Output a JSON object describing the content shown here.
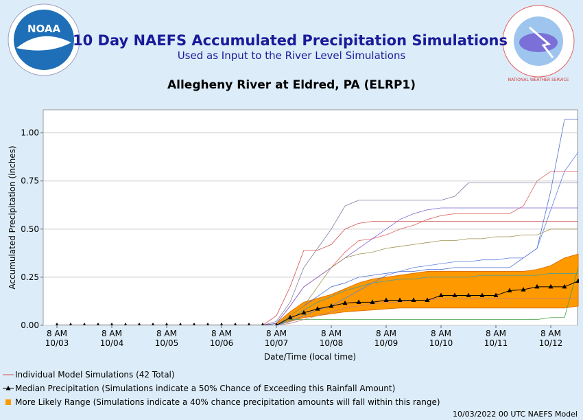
{
  "chart_data": {
    "type": "line",
    "title": "10 Day NAEFS Accumulated Precipitation Simulations",
    "subtitle": "Used as Input to the River Level Simulations",
    "location": "Allegheny River at Eldred, PA (ELRP1)",
    "logos": {
      "noaa": "NOAA",
      "nws": "NATIONAL WEATHER SERVICE"
    },
    "y_label": "Accumulated Precipitation (inches)",
    "x_label": "Date/Time (local time)",
    "footer": "10/03/2022 00 UTC NAEFS Model",
    "category_time_label": "8 AM",
    "categories": [
      "10/03",
      null,
      null,
      null,
      "10/04",
      null,
      null,
      null,
      "10/05",
      null,
      null,
      null,
      "10/06",
      null,
      null,
      null,
      "10/07",
      null,
      null,
      null,
      "10/08",
      null,
      null,
      null,
      "10/09",
      null,
      null,
      null,
      "10/10",
      null,
      null,
      null,
      "10/11",
      null,
      null,
      null,
      "10/12",
      null,
      null
    ],
    "ylim": [
      0,
      1.12
    ],
    "yticks": [
      {
        "value": 0,
        "label": "0.00"
      },
      {
        "value": 0.25,
        "label": "0.25"
      },
      {
        "value": 0.5,
        "label": "0.50"
      },
      {
        "value": 0.75,
        "label": "0.75"
      },
      {
        "value": 1,
        "label": "1.00"
      }
    ],
    "grid": true,
    "legend": [
      {
        "label": "Individual Model Simulations (42 Total)",
        "color": "#d05050"
      },
      {
        "label": "Median Precipitation (Simulations indicate a 50% Chance of Exceeding this Rainfall Amount)",
        "color": "#000000"
      },
      {
        "label": "More Likely Range (Simulations indicate a 40% chance precipitation amounts will fall within this range)",
        "color": "#ff9900"
      }
    ],
    "band": {
      "color": "#ff9900",
      "upper": [
        null,
        null,
        null,
        null,
        null,
        null,
        null,
        null,
        null,
        null,
        null,
        null,
        null,
        null,
        null,
        null,
        0.01,
        0.07,
        0.12,
        0.14,
        0.16,
        0.19,
        0.22,
        0.24,
        0.25,
        0.26,
        0.27,
        0.28,
        0.28,
        0.28,
        0.28,
        0.28,
        0.28,
        0.28,
        0.28,
        0.29,
        0.31,
        0.35,
        0.37
      ],
      "lower": [
        null,
        null,
        null,
        null,
        null,
        null,
        null,
        null,
        null,
        null,
        null,
        null,
        null,
        null,
        null,
        null,
        0,
        0.02,
        0.04,
        0.05,
        0.06,
        0.07,
        0.075,
        0.08,
        0.085,
        0.09,
        0.09,
        0.09,
        0.09,
        0.09,
        0.09,
        0.09,
        0.09,
        0.09,
        0.09,
        0.09,
        0.09,
        0.09,
        0.1
      ]
    },
    "median": {
      "color": "#000000",
      "values": [
        0,
        0,
        0,
        0,
        0,
        0,
        0,
        0,
        0,
        0,
        0,
        0,
        0,
        0,
        0,
        0,
        0,
        0.04,
        0.065,
        0.085,
        0.1,
        0.115,
        0.12,
        0.12,
        0.13,
        0.13,
        0.13,
        0.13,
        0.155,
        0.155,
        0.155,
        0.155,
        0.155,
        0.18,
        0.185,
        0.2,
        0.2,
        0.2,
        0.23
      ]
    },
    "simulations": [
      {
        "color": "#7a7aa0",
        "values": [
          0,
          0,
          0,
          0,
          0,
          0,
          0,
          0,
          0,
          0,
          0,
          0,
          0,
          0,
          0,
          0,
          0.02,
          0.12,
          0.3,
          0.4,
          0.5,
          0.62,
          0.65,
          0.65,
          0.65,
          0.65,
          0.65,
          0.65,
          0.65,
          0.67,
          0.74,
          0.74,
          0.74,
          0.74,
          0.74,
          0.74,
          0.74,
          0.74,
          0.74
        ]
      },
      {
        "color": "#d05050",
        "values": [
          0,
          0,
          0,
          0,
          0,
          0,
          0,
          0,
          0,
          0,
          0,
          0,
          0,
          0,
          0,
          0,
          0.05,
          0.2,
          0.39,
          0.39,
          0.42,
          0.5,
          0.53,
          0.54,
          0.54,
          0.54,
          0.54,
          0.54,
          0.54,
          0.54,
          0.54,
          0.54,
          0.54,
          0.54,
          0.54,
          0.54,
          0.54,
          0.54,
          0.54
        ]
      },
      {
        "color": "#e06060",
        "values": [
          0,
          0,
          0,
          0,
          0,
          0,
          0,
          0,
          0,
          0,
          0,
          0,
          0,
          0,
          0,
          0,
          0.01,
          0.1,
          0.2,
          0.25,
          0.3,
          0.38,
          0.44,
          0.45,
          0.47,
          0.5,
          0.52,
          0.55,
          0.57,
          0.58,
          0.58,
          0.58,
          0.58,
          0.58,
          0.62,
          0.75,
          0.8,
          0.8,
          0.8
        ]
      },
      {
        "color": "#5070d0",
        "values": [
          0,
          0,
          0,
          0,
          0,
          0,
          0,
          0,
          0,
          0,
          0,
          0,
          0,
          0,
          0,
          0,
          0,
          0.05,
          0.1,
          0.15,
          0.2,
          0.22,
          0.25,
          0.26,
          0.27,
          0.28,
          0.28,
          0.29,
          0.29,
          0.3,
          0.3,
          0.3,
          0.3,
          0.3,
          0.35,
          0.4,
          0.7,
          1.07,
          1.07
        ]
      },
      {
        "color": "#8060d0",
        "values": [
          0,
          0,
          0,
          0,
          0,
          0,
          0,
          0,
          0,
          0,
          0,
          0,
          0,
          0,
          0,
          0,
          0.01,
          0.1,
          0.2,
          0.25,
          0.3,
          0.35,
          0.4,
          0.45,
          0.5,
          0.55,
          0.58,
          0.6,
          0.61,
          0.61,
          0.61,
          0.61,
          0.61,
          0.61,
          0.61,
          0.61,
          0.61,
          0.61,
          0.61
        ]
      },
      {
        "color": "#a09050",
        "values": [
          0,
          0,
          0,
          0,
          0,
          0,
          0,
          0,
          0,
          0,
          0,
          0,
          0,
          0,
          0,
          0,
          0,
          0.05,
          0.1,
          0.2,
          0.3,
          0.35,
          0.37,
          0.38,
          0.4,
          0.41,
          0.42,
          0.43,
          0.44,
          0.44,
          0.45,
          0.45,
          0.46,
          0.46,
          0.47,
          0.47,
          0.5,
          0.5,
          0.5
        ]
      },
      {
        "color": "#40a040",
        "values": [
          0,
          0,
          0,
          0,
          0,
          0,
          0,
          0,
          0,
          0,
          0,
          0,
          0,
          0,
          0,
          0,
          0,
          0.03,
          0.03,
          0.03,
          0.03,
          0.03,
          0.03,
          0.03,
          0.03,
          0.03,
          0.03,
          0.03,
          0.03,
          0.03,
          0.03,
          0.03,
          0.03,
          0.03,
          0.03,
          0.03,
          0.04,
          0.04,
          0.3
        ]
      },
      {
        "color": "#40a0a0",
        "values": [
          0,
          0,
          0,
          0,
          0,
          0,
          0,
          0,
          0,
          0,
          0,
          0,
          0,
          0,
          0,
          0,
          0,
          0.03,
          0.08,
          0.12,
          0.15,
          0.18,
          0.2,
          0.22,
          0.23,
          0.24,
          0.24,
          0.25,
          0.25,
          0.25,
          0.25,
          0.26,
          0.26,
          0.26,
          0.26,
          0.26,
          0.27,
          0.27,
          0.27
        ]
      },
      {
        "color": "#6080e0",
        "values": [
          0,
          0,
          0,
          0,
          0,
          0,
          0,
          0,
          0,
          0,
          0,
          0,
          0,
          0,
          0,
          0,
          0,
          0.02,
          0.05,
          0.08,
          0.1,
          0.14,
          0.18,
          0.22,
          0.26,
          0.28,
          0.3,
          0.31,
          0.32,
          0.33,
          0.33,
          0.34,
          0.34,
          0.35,
          0.35,
          0.4,
          0.6,
          0.8,
          0.9
        ]
      },
      {
        "color": "#c08080",
        "values": [
          0,
          0,
          0,
          0,
          0,
          0,
          0,
          0,
          0,
          0,
          0,
          0,
          0,
          0,
          0,
          0,
          0,
          0.01,
          0.03,
          0.05,
          0.07,
          0.09,
          0.1,
          0.11,
          0.12,
          0.12,
          0.13,
          0.13,
          0.14,
          0.14,
          0.14,
          0.14,
          0.14,
          0.14,
          0.14,
          0.14,
          0.14,
          0.14,
          0.14
        ]
      }
    ]
  }
}
